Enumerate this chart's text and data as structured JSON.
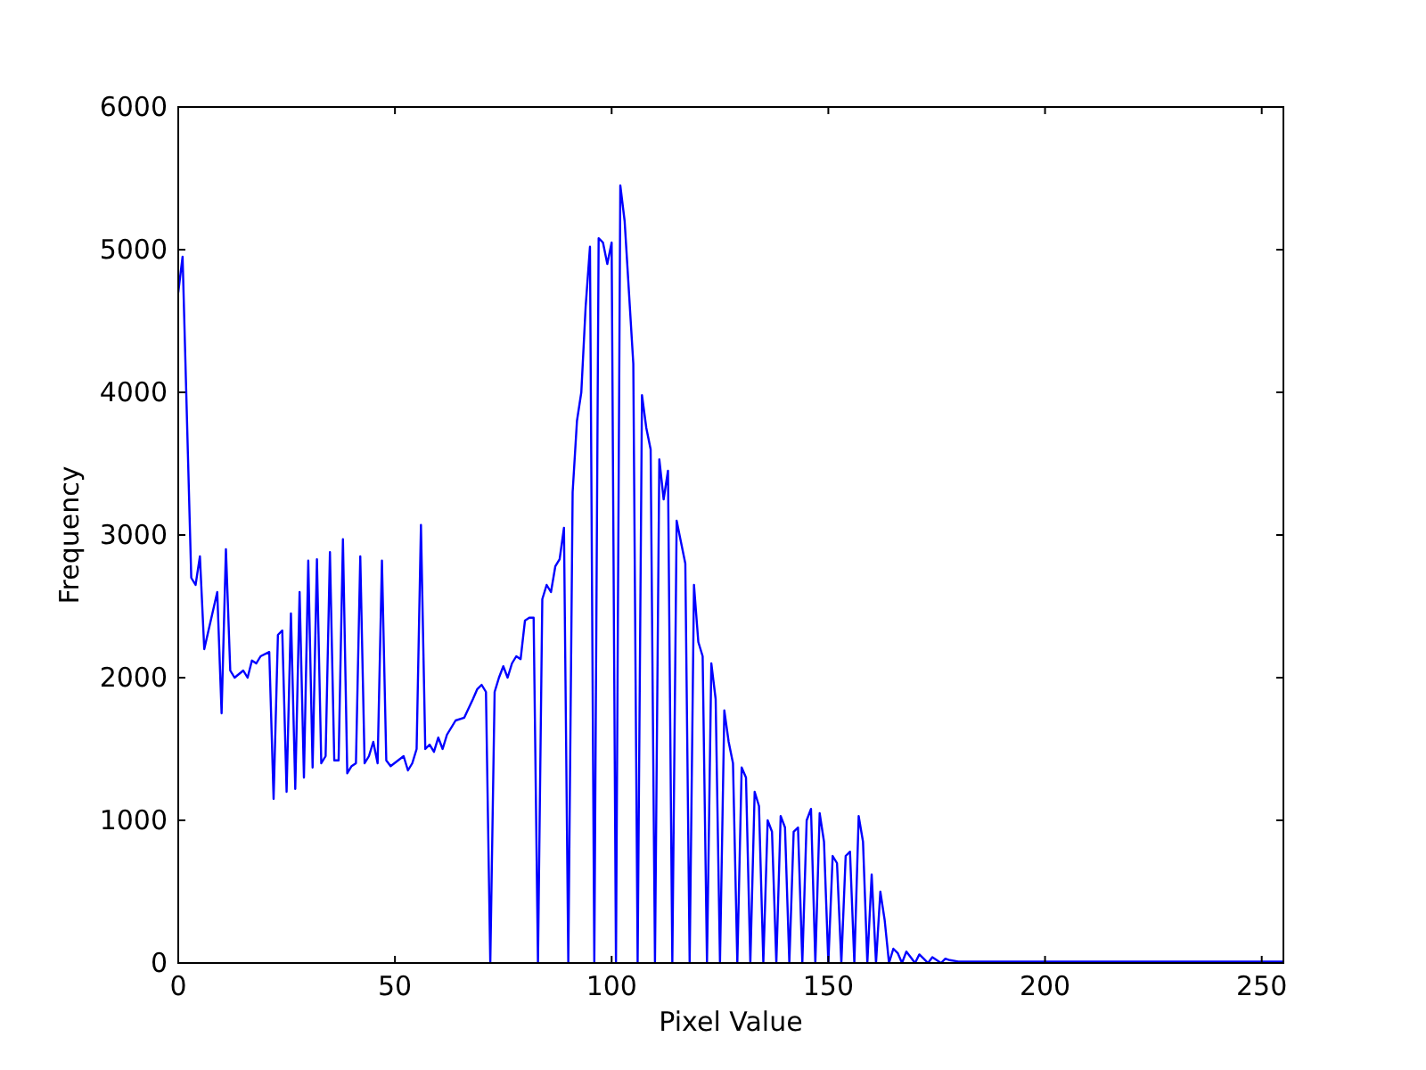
{
  "chart_data": {
    "type": "line",
    "xlabel": "Pixel Value",
    "ylabel": "Frequency",
    "xlim": [
      0,
      255
    ],
    "xticks": [
      0,
      50,
      100,
      150,
      200,
      250
    ],
    "ylim": [
      0,
      6000
    ],
    "yticks": [
      0,
      1000,
      2000,
      3000,
      4000,
      5000,
      6000
    ],
    "grid": false,
    "series": [
      {
        "color": "#0000ff",
        "x": [
          0,
          1,
          3,
          4,
          5,
          6,
          9,
          10,
          11,
          12,
          13,
          15,
          16,
          17,
          18,
          19,
          21,
          22,
          23,
          24,
          25,
          26,
          27,
          28,
          29,
          30,
          31,
          32,
          33,
          34,
          35,
          36,
          37,
          38,
          39,
          40,
          41,
          42,
          43,
          44,
          45,
          46,
          47,
          48,
          49,
          52,
          53,
          54,
          55,
          56,
          57,
          58,
          59,
          60,
          61,
          62,
          64,
          66,
          68,
          69,
          70,
          71,
          72,
          73,
          74,
          75,
          76,
          77,
          78,
          79,
          80,
          81,
          82,
          83,
          84,
          85,
          86,
          87,
          88,
          89,
          90,
          91,
          92,
          93,
          94,
          95,
          96,
          97,
          98,
          99,
          100,
          101,
          102,
          103,
          105,
          106,
          107,
          108,
          109,
          110,
          111,
          112,
          113,
          114,
          115,
          116,
          117,
          118,
          119,
          120,
          121,
          122,
          123,
          124,
          125,
          126,
          127,
          128,
          129,
          130,
          131,
          132,
          133,
          134,
          135,
          136,
          137,
          138,
          139,
          140,
          141,
          142,
          143,
          144,
          145,
          146,
          147,
          148,
          149,
          150,
          151,
          152,
          153,
          154,
          155,
          156,
          157,
          158,
          159,
          160,
          161,
          162,
          163,
          164,
          165,
          166,
          167,
          168,
          169,
          170,
          171,
          172,
          173,
          174,
          175,
          176,
          177,
          178,
          180,
          185,
          190,
          200,
          220,
          240,
          255
        ],
        "values": [
          4700,
          4950,
          2700,
          2650,
          2850,
          2200,
          2600,
          1750,
          2900,
          2050,
          2000,
          2050,
          2000,
          2120,
          2100,
          2150,
          2180,
          1150,
          2300,
          2330,
          1200,
          2450,
          1220,
          2600,
          1300,
          2820,
          1370,
          2830,
          1400,
          1450,
          2880,
          1420,
          1420,
          2970,
          1330,
          1380,
          1400,
          2850,
          1400,
          1450,
          1550,
          1400,
          2820,
          1420,
          1380,
          1450,
          1350,
          1400,
          1500,
          3070,
          1500,
          1530,
          1480,
          1580,
          1500,
          1600,
          1700,
          1720,
          1850,
          1920,
          1950,
          1900,
          0,
          1900,
          2000,
          2080,
          2000,
          2100,
          2150,
          2130,
          2400,
          2420,
          2420,
          0,
          2550,
          2650,
          2600,
          2780,
          2830,
          3050,
          0,
          3300,
          3800,
          4000,
          4600,
          5020,
          0,
          5080,
          5050,
          4900,
          5050,
          0,
          5450,
          5200,
          4200,
          0,
          3980,
          3750,
          3600,
          0,
          3530,
          3250,
          3450,
          0,
          3100,
          2950,
          2800,
          0,
          2650,
          2250,
          2150,
          0,
          2100,
          1850,
          0,
          1770,
          1550,
          1400,
          0,
          1370,
          1300,
          0,
          1200,
          1100,
          0,
          1000,
          920,
          0,
          1030,
          950,
          0,
          920,
          950,
          0,
          1000,
          1080,
          0,
          1050,
          850,
          0,
          750,
          700,
          0,
          750,
          780,
          0,
          1030,
          850,
          0,
          620,
          0,
          500,
          300,
          0,
          100,
          70,
          0,
          80,
          40,
          0,
          60,
          30,
          0,
          40,
          20,
          0,
          30,
          20,
          10,
          10,
          10,
          10,
          10,
          10,
          10
        ]
      }
    ]
  }
}
